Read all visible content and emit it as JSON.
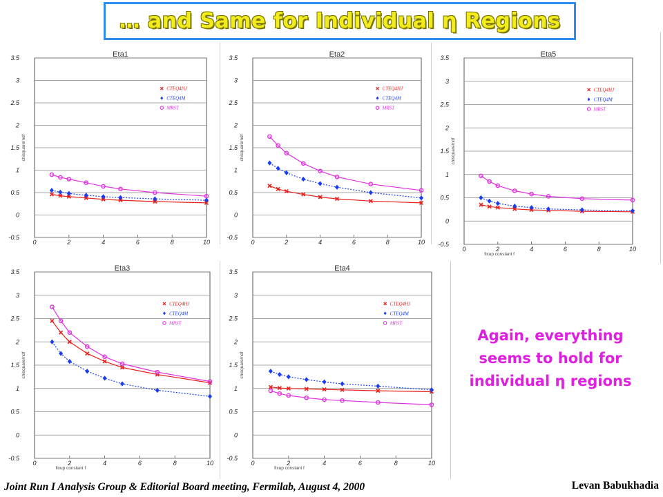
{
  "slide": {
    "title": "… and Same for Individual η Regions",
    "note_lines": [
      "Again, everything",
      "seems to hold for",
      "individual η regions"
    ],
    "footer_left": "Joint Run I Analysis Group & Editorial Board meeting, Fermilab, August 4, 2000",
    "footer_right": "Levan Babukhadia"
  },
  "colors": {
    "title_fill": "#f2ec1c",
    "title_border": "#2e8ef0",
    "note": "#e020e0",
    "cteq4hj": "#e8201c",
    "cteq4m": "#1a3cf0",
    "mrst": "#e030e0"
  },
  "chart_data": [
    {
      "type": "line",
      "title": "Eta1",
      "xlim": [
        0,
        10
      ],
      "ylim": [
        -0.5,
        3.5
      ],
      "x": [
        1,
        1.5,
        2,
        3,
        4,
        5,
        7,
        10
      ],
      "ylabel": "chisquare/ndf",
      "xlabel": "",
      "grid": true,
      "legend_position": "top-right",
      "xticks": [
        "0",
        "2",
        "4",
        "6",
        "8",
        "10"
      ],
      "yticks": [
        "-0.5",
        "0",
        "0.5",
        "1",
        "1.5",
        "2",
        "2.5",
        "3",
        "3.5"
      ],
      "series": [
        {
          "name": "CTEQ4HJ",
          "color": "#e8201c",
          "marker": "x",
          "values": [
            0.46,
            0.43,
            0.41,
            0.38,
            0.35,
            0.33,
            0.3,
            0.27
          ]
        },
        {
          "name": "CTEQ4M",
          "color": "#1a3cf0",
          "marker": "diamond",
          "values": [
            0.55,
            0.51,
            0.48,
            0.44,
            0.41,
            0.39,
            0.36,
            0.33
          ]
        },
        {
          "name": "MRST",
          "color": "#e030e0",
          "marker": "circle",
          "values": [
            0.9,
            0.84,
            0.8,
            0.72,
            0.64,
            0.58,
            0.5,
            0.42
          ]
        }
      ]
    },
    {
      "type": "line",
      "title": "Eta2",
      "xlim": [
        0,
        10
      ],
      "ylim": [
        -0.5,
        3.5
      ],
      "x": [
        1,
        1.5,
        2,
        3,
        4,
        5,
        7,
        10
      ],
      "ylabel": "chisquare/ndf",
      "xlabel": "",
      "grid": true,
      "legend_position": "top-right",
      "xticks": [
        "0",
        "2",
        "4",
        "6",
        "8",
        "10"
      ],
      "yticks": [
        "-0.5",
        "0",
        "0.5",
        "1",
        "1.5",
        "2",
        "2.5",
        "3",
        "3.5"
      ],
      "series": [
        {
          "name": "CTEQ4HJ",
          "color": "#e8201c",
          "marker": "x",
          "values": [
            0.65,
            0.58,
            0.53,
            0.46,
            0.4,
            0.36,
            0.31,
            0.27
          ]
        },
        {
          "name": "CTEQ4M",
          "color": "#1a3cf0",
          "marker": "diamond",
          "values": [
            1.16,
            1.04,
            0.94,
            0.8,
            0.7,
            0.62,
            0.5,
            0.38
          ]
        },
        {
          "name": "MRST",
          "color": "#e030e0",
          "marker": "circle",
          "values": [
            1.75,
            1.55,
            1.38,
            1.15,
            0.98,
            0.85,
            0.69,
            0.55
          ]
        }
      ]
    },
    {
      "type": "line",
      "title": "Eta5",
      "xlim": [
        0,
        10
      ],
      "ylim": [
        -0.5,
        3.5
      ],
      "x": [
        1,
        1.5,
        2,
        3,
        4,
        5,
        7,
        10
      ],
      "ylabel": "chisquare/ndf",
      "xlabel": "fixup constant f",
      "grid": true,
      "legend_position": "top-right",
      "xticks": [
        "0",
        "2",
        "4",
        "6",
        "8",
        "10"
      ],
      "yticks": [
        "-0.5",
        "0",
        "0.5",
        "1",
        "1.5",
        "2",
        "2.5",
        "3",
        "3.5"
      ],
      "series": [
        {
          "name": "CTEQ4HJ",
          "color": "#e8201c",
          "marker": "x",
          "values": [
            0.35,
            0.31,
            0.29,
            0.26,
            0.24,
            0.23,
            0.21,
            0.2
          ]
        },
        {
          "name": "CTEQ4M",
          "color": "#1a3cf0",
          "marker": "diamond",
          "values": [
            0.5,
            0.43,
            0.38,
            0.32,
            0.29,
            0.26,
            0.24,
            0.22
          ]
        },
        {
          "name": "MRST",
          "color": "#e030e0",
          "marker": "circle",
          "values": [
            0.97,
            0.85,
            0.76,
            0.65,
            0.58,
            0.53,
            0.48,
            0.45
          ]
        }
      ]
    },
    {
      "type": "line",
      "title": "Eta3",
      "xlim": [
        0,
        10
      ],
      "ylim": [
        -0.5,
        3.5
      ],
      "x": [
        1,
        1.5,
        2,
        3,
        4,
        5,
        7,
        10
      ],
      "ylabel": "chisquare/ndf",
      "xlabel": "fixup constant f",
      "grid": true,
      "legend_position": "top-right",
      "xticks": [
        "0",
        "2",
        "4",
        "6",
        "8",
        "10"
      ],
      "yticks": [
        "-0.5",
        "0",
        "0.5",
        "1",
        "1.5",
        "2",
        "2.5",
        "3",
        "3.5"
      ],
      "series": [
        {
          "name": "CTEQ4HJ",
          "color": "#e8201c",
          "marker": "x",
          "values": [
            2.45,
            2.2,
            2.0,
            1.75,
            1.58,
            1.45,
            1.3,
            1.12
          ]
        },
        {
          "name": "CTEQ4M",
          "color": "#1a3cf0",
          "marker": "diamond",
          "values": [
            2.0,
            1.75,
            1.58,
            1.37,
            1.22,
            1.1,
            0.96,
            0.83
          ]
        },
        {
          "name": "MRST",
          "color": "#e030e0",
          "marker": "circle",
          "values": [
            2.75,
            2.45,
            2.2,
            1.9,
            1.68,
            1.53,
            1.35,
            1.15
          ]
        }
      ]
    },
    {
      "type": "line",
      "title": "Eta4",
      "xlim": [
        0,
        10
      ],
      "ylim": [
        -0.5,
        3.5
      ],
      "x": [
        1,
        1.5,
        2,
        3,
        4,
        5,
        7,
        10
      ],
      "ylabel": "chisquare/ndf",
      "xlabel": "fixup constant f",
      "grid": true,
      "legend_position": "top-right",
      "xticks": [
        "0",
        "2",
        "4",
        "6",
        "8",
        "10"
      ],
      "yticks": [
        "-0.5",
        "0",
        "0.5",
        "1",
        "1.5",
        "2",
        "2.5",
        "3",
        "3.5"
      ],
      "series": [
        {
          "name": "CTEQ4HJ",
          "color": "#e8201c",
          "marker": "x",
          "values": [
            1.03,
            1.01,
            1.0,
            0.99,
            0.98,
            0.97,
            0.95,
            0.93
          ]
        },
        {
          "name": "CTEQ4M",
          "color": "#1a3cf0",
          "marker": "diamond",
          "values": [
            1.37,
            1.3,
            1.25,
            1.19,
            1.14,
            1.1,
            1.05,
            0.97
          ]
        },
        {
          "name": "MRST",
          "color": "#e030e0",
          "marker": "circle",
          "values": [
            0.95,
            0.89,
            0.85,
            0.8,
            0.76,
            0.74,
            0.7,
            0.65
          ]
        }
      ]
    }
  ]
}
